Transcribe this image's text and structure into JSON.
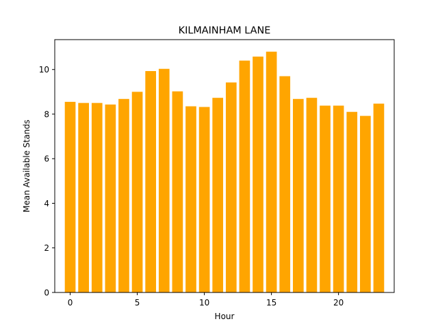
{
  "chart_data": {
    "type": "bar",
    "title": "KILMAINHAM LANE",
    "xlabel": "Hour",
    "ylabel": "Mean Available Stands",
    "x": [
      0,
      1,
      2,
      3,
      4,
      5,
      6,
      7,
      8,
      9,
      10,
      11,
      12,
      13,
      14,
      15,
      16,
      17,
      18,
      19,
      20,
      21,
      22,
      23
    ],
    "values": [
      8.55,
      8.5,
      8.5,
      8.43,
      8.68,
      9.0,
      9.93,
      10.03,
      9.02,
      8.35,
      8.32,
      8.73,
      9.42,
      10.4,
      10.58,
      10.8,
      9.7,
      8.68,
      8.73,
      8.38,
      8.38,
      8.1,
      7.92,
      8.47
    ],
    "xlim": [
      -1.15,
      24.15
    ],
    "ylim": [
      0,
      11.34
    ],
    "xticks": [
      0,
      5,
      10,
      15,
      20
    ],
    "yticks": [
      0,
      2,
      4,
      6,
      8,
      10
    ],
    "bar_color": "#ffa500",
    "grid": false
  }
}
